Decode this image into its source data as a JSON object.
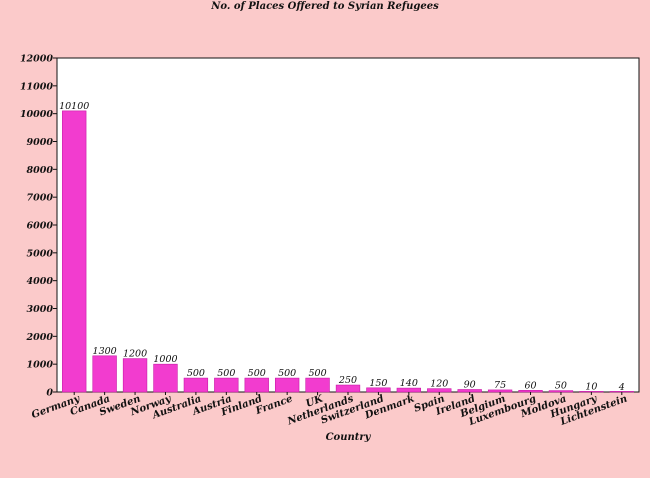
{
  "chart_data": {
    "type": "bar",
    "title": "No. of Places Offered to Syrian Refugees",
    "xlabel": "Country",
    "ylabel": "",
    "ylim": [
      0,
      12000
    ],
    "yticks": [
      0,
      1000,
      2000,
      3000,
      4000,
      5000,
      6000,
      7000,
      8000,
      9000,
      10000,
      11000,
      12000
    ],
    "categories": [
      "Germany",
      "Canada",
      "Sweden",
      "Norway",
      "Australia",
      "Austria",
      "Finland",
      "France",
      "UK",
      "Netherlands",
      "Switzerland",
      "Denmark",
      "Spain",
      "Ireland",
      "Belgium",
      "Luxembourg",
      "Moldova",
      "Hungary",
      "Lichtenstein"
    ],
    "values": [
      10100,
      1300,
      1200,
      1000,
      500,
      500,
      500,
      500,
      500,
      250,
      150,
      140,
      120,
      90,
      75,
      60,
      50,
      10,
      4
    ],
    "grid": false,
    "legend": "none",
    "colors": {
      "bar": "#f23ccf",
      "bar_edge": "#c81aa6",
      "background": "#fbcaca",
      "plot_background": "#ffffff"
    }
  }
}
